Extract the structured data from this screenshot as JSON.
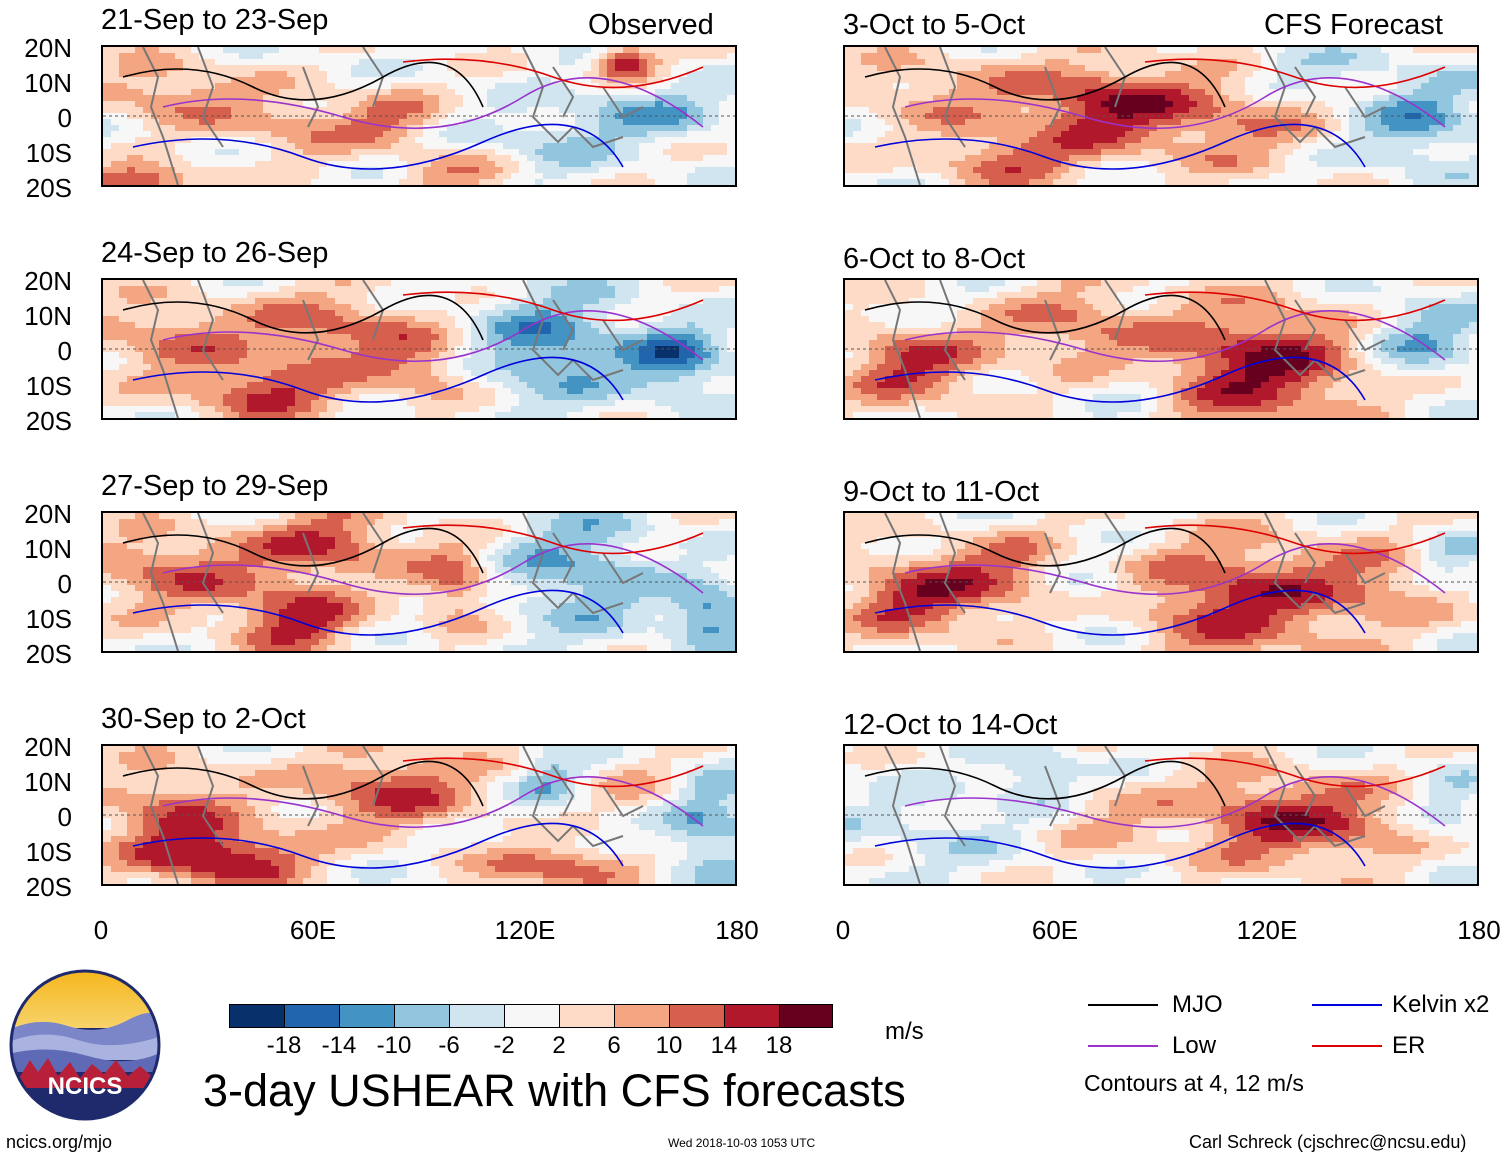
{
  "header": {
    "observed_label": "Observed",
    "forecast_label": "CFS Forecast"
  },
  "panels_observed": [
    {
      "title": "21-Sep to 23-Sep"
    },
    {
      "title": "24-Sep to 26-Sep"
    },
    {
      "title": "27-Sep to 29-Sep"
    },
    {
      "title": "30-Sep to 2-Oct"
    }
  ],
  "panels_forecast": [
    {
      "title": "3-Oct to 5-Oct"
    },
    {
      "title": "6-Oct to 8-Oct"
    },
    {
      "title": "9-Oct to 11-Oct"
    },
    {
      "title": "12-Oct to 14-Oct"
    }
  ],
  "chart_data": {
    "type": "heatmap",
    "title": "3-day USHEAR with CFS forecasts",
    "variable": "USHEAR",
    "units": "m/s",
    "lat_ticks": [
      "20N",
      "10N",
      "0",
      "10S",
      "20S"
    ],
    "lon_ticks": [
      "0",
      "60E",
      "120E",
      "180"
    ],
    "ylim": [
      -20,
      20
    ],
    "xlim": [
      0,
      180
    ],
    "colorbar": {
      "levels": [
        "-18",
        "-14",
        "-10",
        "-6",
        "-2",
        "2",
        "6",
        "10",
        "14",
        "18"
      ],
      "colors": [
        "#08306b",
        "#2166ac",
        "#4393c3",
        "#92c5de",
        "#d1e5f0",
        "#f7f7f7",
        "#fddbc7",
        "#f4a582",
        "#d6604d",
        "#b2182b",
        "#67001f"
      ]
    },
    "contour_note": "Contours at 4, 12 m/s",
    "legend": [
      {
        "name": "MJO",
        "color": "#000000"
      },
      {
        "name": "Kelvin x2",
        "color": "#0000dd"
      },
      {
        "name": "Low",
        "color": "#9933cc"
      },
      {
        "name": "ER",
        "color": "#dd0000"
      }
    ]
  },
  "footer": {
    "logo_text": "NCICS",
    "site": "ncics.org/mjo",
    "timestamp": "Wed 2018-10-03 1053 UTC",
    "author": "Carl Schreck (cjschrec@ncsu.edu)"
  }
}
